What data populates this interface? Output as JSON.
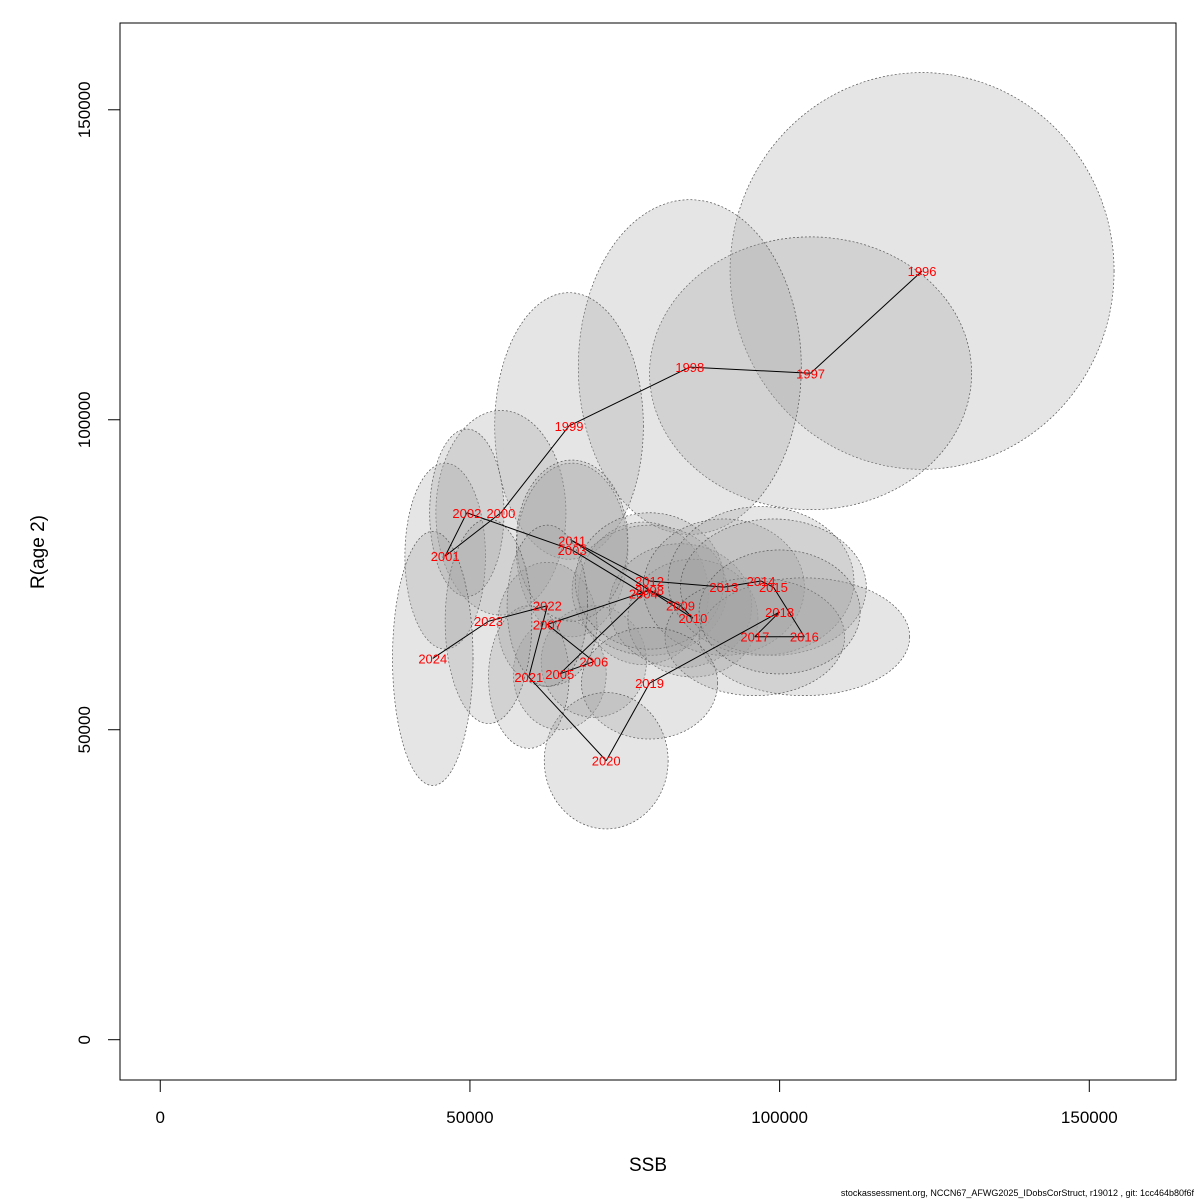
{
  "chart_data": {
    "type": "scatter",
    "title": "",
    "xlabel": "SSB",
    "ylabel": "R(age 2)",
    "xlim": [
      -6500,
      164000
    ],
    "ylim": [
      -6500,
      164000
    ],
    "xticks": [
      0,
      50000,
      100000,
      150000
    ],
    "yticks": [
      0,
      50000,
      100000,
      150000
    ],
    "xtick_labels": [
      "0",
      "50000",
      "100000",
      "150000"
    ],
    "ytick_labels": [
      "0",
      "50000",
      "100000",
      "150000"
    ],
    "grid": false,
    "legend": "none",
    "colors": {
      "label": "#ff0000",
      "ellipse_fill": "#a0a0a0",
      "ellipse_stroke": "#555555",
      "line": "#000000"
    },
    "points": [
      {
        "year": "1996",
        "ssb": 123000,
        "rec": 124000,
        "rx": 31000,
        "ry": 32000
      },
      {
        "year": "1997",
        "ssb": 105000,
        "rec": 107500,
        "rx": 26000,
        "ry": 22000
      },
      {
        "year": "1998",
        "ssb": 85500,
        "rec": 108500,
        "rx": 18000,
        "ry": 27000
      },
      {
        "year": "1999",
        "ssb": 66000,
        "rec": 99000,
        "rx": 12000,
        "ry": 21500
      },
      {
        "year": "2000",
        "ssb": 55000,
        "rec": 85000,
        "rx": 10500,
        "ry": 16500
      },
      {
        "year": "2001",
        "ssb": 46000,
        "rec": 78000,
        "rx": 6500,
        "ry": 15000
      },
      {
        "year": "2002",
        "ssb": 49500,
        "rec": 85000,
        "rx": 6000,
        "ry": 13500
      },
      {
        "year": "2003",
        "ssb": 66500,
        "rec": 79000,
        "rx": 9000,
        "ry": 14000
      },
      {
        "year": "2004",
        "ssb": 78000,
        "rec": 72000,
        "rx": 10500,
        "ry": 11500
      },
      {
        "year": "2005",
        "ssb": 64500,
        "rec": 59000,
        "rx": 7500,
        "ry": 9000
      },
      {
        "year": "2006",
        "ssb": 70000,
        "rec": 61000,
        "rx": 8500,
        "ry": 9000
      },
      {
        "year": "2007",
        "ssb": 62500,
        "rec": 67000,
        "rx": 8000,
        "ry": 10000
      },
      {
        "year": "2008",
        "ssb": 79000,
        "rec": 72500,
        "rx": 12500,
        "ry": 10500
      },
      {
        "year": "2009",
        "ssb": 84000,
        "rec": 70000,
        "rx": 11500,
        "ry": 10000
      },
      {
        "year": "2010",
        "ssb": 86000,
        "rec": 68000,
        "rx": 10500,
        "ry": 9500
      },
      {
        "year": "2011",
        "ssb": 66500,
        "rec": 80500,
        "rx": 9000,
        "ry": 13000
      },
      {
        "year": "2012",
        "ssb": 79000,
        "rec": 74000,
        "rx": 12000,
        "ry": 11000
      },
      {
        "year": "2013",
        "ssb": 91000,
        "rec": 73000,
        "rx": 13000,
        "ry": 11000
      },
      {
        "year": "2014",
        "ssb": 97000,
        "rec": 74000,
        "rx": 15000,
        "ry": 12000
      },
      {
        "year": "2015",
        "ssb": 99000,
        "rec": 73000,
        "rx": 15000,
        "ry": 11000
      },
      {
        "year": "2016",
        "ssb": 104000,
        "rec": 65000,
        "rx": 17000,
        "ry": 9500
      },
      {
        "year": "2017",
        "ssb": 96000,
        "rec": 65000,
        "rx": 14500,
        "ry": 9500
      },
      {
        "year": "2018",
        "ssb": 100000,
        "rec": 69000,
        "rx": 13000,
        "ry": 10000
      },
      {
        "year": "2019",
        "ssb": 79000,
        "rec": 57500,
        "rx": 11000,
        "ry": 9000
      },
      {
        "year": "2020",
        "ssb": 72000,
        "rec": 45000,
        "rx": 10000,
        "ry": 11000
      },
      {
        "year": "2021",
        "ssb": 59500,
        "rec": 58500,
        "rx": 6500,
        "ry": 11500
      },
      {
        "year": "2022",
        "ssb": 62500,
        "rec": 70000,
        "rx": 6500,
        "ry": 13000
      },
      {
        "year": "2023",
        "ssb": 53000,
        "rec": 67500,
        "rx": 7000,
        "ry": 16500
      },
      {
        "year": "2024",
        "ssb": 44000,
        "rec": 61500,
        "rx": 6500,
        "ry": 20500
      }
    ]
  },
  "footer": "stockassessment.org, NCCN67_AFWG2025_IDobsCorStruct, r19012 , git: 1cc464b80f6f"
}
